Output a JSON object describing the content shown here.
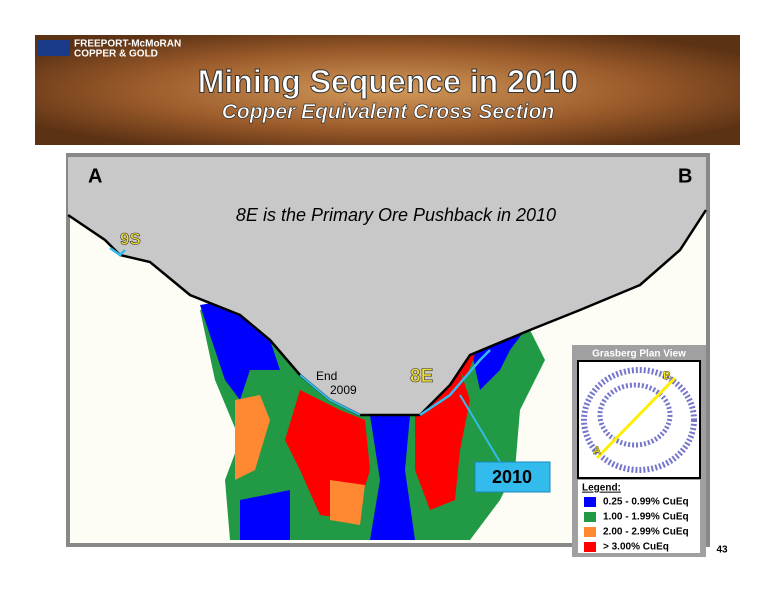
{
  "header": {
    "company_line1": "FREEPORT-McMoRAN",
    "company_line2": "COPPER & GOLD",
    "title": "Mining Sequence in 2010",
    "subtitle": "Copper Equivalent Cross Section"
  },
  "section": {
    "left_label": "A",
    "right_label": "B",
    "caption": "8E is the Primary Ore Pushback in 2010",
    "label_9s": "9S",
    "end_line1": "End",
    "end_line2": "2009",
    "label_8e": "8E",
    "label_2010": "2010"
  },
  "inset": {
    "title": "Grasberg Plan View",
    "point_a": "A",
    "point_b": "B"
  },
  "legend": {
    "title": "Legend:",
    "items": [
      {
        "label": "0.25 - 0.99% CuEq",
        "color": "#0000ff"
      },
      {
        "label": "1.00 - 1.99% CuEq",
        "color": "#229944"
      },
      {
        "label": "2.00 - 2.99% CuEq",
        "color": "#ff8833"
      },
      {
        "label": "> 3.00% CuEq",
        "color": "#ff0000"
      }
    ]
  },
  "page_number": "43"
}
